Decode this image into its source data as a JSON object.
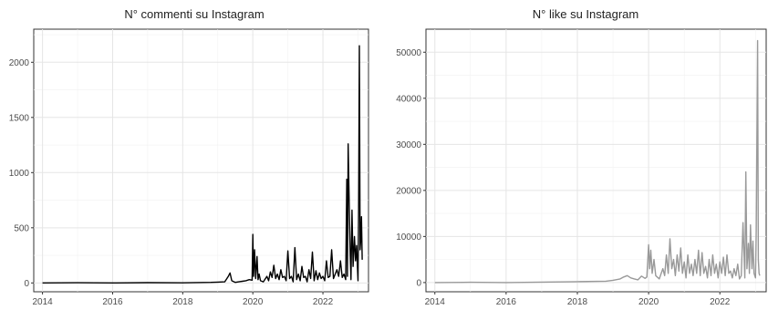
{
  "chart_data": [
    {
      "type": "line",
      "title": "N° commenti su Instagram",
      "xlabel": "",
      "ylabel": "",
      "xlim": [
        2013.75,
        2023.3
      ],
      "ylim": [
        -80,
        2300
      ],
      "x_ticks": [
        2014,
        2016,
        2018,
        2020,
        2022
      ],
      "y_ticks": [
        0,
        500,
        1000,
        1500,
        2000
      ],
      "grid": true,
      "legend": "none",
      "series_color": "#000000",
      "x": [
        2014.0,
        2015.0,
        2016.0,
        2017.0,
        2018.0,
        2018.8,
        2019.0,
        2019.2,
        2019.3,
        2019.35,
        2019.4,
        2019.5,
        2019.6,
        2019.7,
        2019.8,
        2019.9,
        2019.98,
        2020.0,
        2020.02,
        2020.05,
        2020.08,
        2020.12,
        2020.15,
        2020.18,
        2020.22,
        2020.3,
        2020.4,
        2020.45,
        2020.5,
        2020.55,
        2020.6,
        2020.65,
        2020.7,
        2020.75,
        2020.8,
        2020.85,
        2020.9,
        2020.95,
        2021.0,
        2021.05,
        2021.1,
        2021.15,
        2021.2,
        2021.25,
        2021.3,
        2021.35,
        2021.4,
        2021.45,
        2021.5,
        2021.55,
        2021.6,
        2021.65,
        2021.7,
        2021.75,
        2021.8,
        2021.85,
        2021.9,
        2021.95,
        2022.0,
        2022.05,
        2022.1,
        2022.15,
        2022.2,
        2022.25,
        2022.3,
        2022.35,
        2022.4,
        2022.45,
        2022.5,
        2022.55,
        2022.6,
        2022.65,
        2022.68,
        2022.7,
        2022.72,
        2022.75,
        2022.78,
        2022.8,
        2022.83,
        2022.86,
        2022.9,
        2022.93,
        2022.96,
        2023.0,
        2023.02,
        2023.04,
        2023.06,
        2023.08,
        2023.1,
        2023.12
      ],
      "values": [
        0,
        2,
        0,
        3,
        1,
        5,
        8,
        10,
        60,
        90,
        20,
        5,
        10,
        15,
        20,
        30,
        25,
        440,
        60,
        300,
        40,
        240,
        30,
        80,
        20,
        10,
        60,
        20,
        100,
        50,
        160,
        40,
        80,
        30,
        120,
        50,
        60,
        20,
        290,
        40,
        60,
        10,
        320,
        30,
        80,
        20,
        150,
        50,
        60,
        10,
        120,
        40,
        280,
        20,
        110,
        30,
        90,
        40,
        60,
        20,
        200,
        50,
        60,
        300,
        40,
        80,
        120,
        60,
        200,
        50,
        80,
        30,
        940,
        60,
        1260,
        700,
        250,
        30,
        660,
        150,
        420,
        200,
        340,
        20,
        680,
        2150,
        300,
        390,
        600,
        210
      ]
    },
    {
      "type": "line",
      "title": "N° like su Instagram",
      "xlabel": "",
      "ylabel": "",
      "xlim": [
        2013.75,
        2023.3
      ],
      "ylim": [
        -2000,
        55000
      ],
      "x_ticks": [
        2014,
        2016,
        2018,
        2020,
        2022
      ],
      "y_ticks": [
        0,
        10000,
        20000,
        30000,
        40000,
        50000
      ],
      "grid": true,
      "legend": "none",
      "series_color": "#999999",
      "x": [
        2014.0,
        2015.0,
        2016.0,
        2017.0,
        2018.0,
        2018.8,
        2019.0,
        2019.2,
        2019.3,
        2019.4,
        2019.5,
        2019.6,
        2019.7,
        2019.8,
        2019.9,
        2019.95,
        2020.0,
        2020.03,
        2020.06,
        2020.1,
        2020.15,
        2020.2,
        2020.3,
        2020.4,
        2020.45,
        2020.5,
        2020.55,
        2020.6,
        2020.65,
        2020.7,
        2020.75,
        2020.8,
        2020.85,
        2020.9,
        2020.95,
        2021.0,
        2021.05,
        2021.1,
        2021.15,
        2021.2,
        2021.25,
        2021.3,
        2021.35,
        2021.4,
        2021.45,
        2021.5,
        2021.55,
        2021.6,
        2021.65,
        2021.7,
        2021.75,
        2021.8,
        2021.85,
        2021.9,
        2021.95,
        2022.0,
        2022.05,
        2022.1,
        2022.15,
        2022.2,
        2022.25,
        2022.3,
        2022.35,
        2022.4,
        2022.45,
        2022.5,
        2022.55,
        2022.6,
        2022.65,
        2022.7,
        2022.73,
        2022.76,
        2022.8,
        2022.83,
        2022.86,
        2022.9,
        2022.93,
        2022.96,
        2023.0,
        2023.02,
        2023.04,
        2023.06,
        2023.08,
        2023.1,
        2023.12
      ],
      "values": [
        0,
        50,
        0,
        100,
        200,
        300,
        500,
        800,
        1200,
        1500,
        1000,
        800,
        600,
        1400,
        900,
        1200,
        8200,
        3000,
        7000,
        2000,
        5000,
        1500,
        800,
        3000,
        1500,
        6000,
        2000,
        9500,
        3000,
        5000,
        1500,
        6000,
        2500,
        7500,
        2000,
        4500,
        1000,
        6000,
        2000,
        4000,
        1500,
        5000,
        2000,
        7000,
        1500,
        6500,
        2000,
        3500,
        1000,
        5000,
        1500,
        6000,
        2000,
        4000,
        1000,
        4500,
        2000,
        5500,
        1500,
        6000,
        2000,
        2500,
        1000,
        3000,
        1500,
        4000,
        800,
        1500,
        13000,
        1000,
        24000,
        3000,
        8500,
        2000,
        12500,
        3000,
        9000,
        2000,
        1000,
        11000,
        30500,
        52500,
        5000,
        2000,
        1500
      ]
    }
  ]
}
